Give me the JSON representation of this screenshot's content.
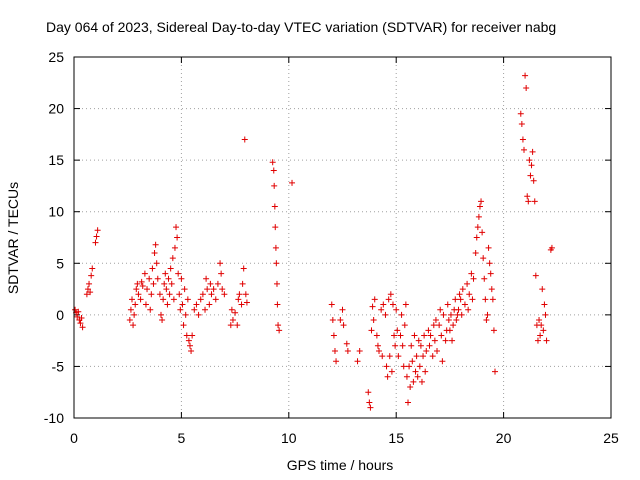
{
  "chart_data": {
    "type": "scatter",
    "title": "Day 064 of 2023, Sidereal Day-to-day VTEC variation (SDTVAR) for receiver nabg",
    "xlabel": "GPS time / hours",
    "ylabel": "SDTVAR / TECUs",
    "xlim": [
      0,
      25
    ],
    "ylim": [
      -10,
      25
    ],
    "xticks": [
      0,
      5,
      10,
      15,
      20,
      25
    ],
    "yticks": [
      -10,
      -5,
      0,
      5,
      10,
      15,
      20,
      25
    ],
    "xtick_labels": [
      "0",
      "5",
      "10",
      "15",
      "20",
      "25"
    ],
    "ytick_labels": [
      "-10",
      "-5",
      "0",
      "5",
      "10",
      "15",
      "20",
      "25"
    ],
    "grid": true,
    "marker": "+",
    "color": "#e00000",
    "series": [
      {
        "name": "SDTVAR",
        "points": [
          [
            0.05,
            0.5
          ],
          [
            0.1,
            0.2
          ],
          [
            0.15,
            -0.2
          ],
          [
            0.2,
            0.3
          ],
          [
            0.25,
            -0.5
          ],
          [
            0.3,
            -0.8
          ],
          [
            0.35,
            -0.3
          ],
          [
            0.4,
            -1.2
          ],
          [
            0.6,
            2.0
          ],
          [
            0.65,
            2.5
          ],
          [
            0.7,
            3.0
          ],
          [
            0.75,
            2.2
          ],
          [
            0.8,
            3.8
          ],
          [
            0.85,
            4.5
          ],
          [
            1.0,
            7.0
          ],
          [
            1.05,
            7.6
          ],
          [
            1.1,
            8.2
          ],
          [
            2.6,
            -0.5
          ],
          [
            2.65,
            0.5
          ],
          [
            2.7,
            1.5
          ],
          [
            2.75,
            -1.0
          ],
          [
            2.8,
            0.0
          ],
          [
            2.85,
            1.0
          ],
          [
            2.9,
            2.5
          ],
          [
            2.95,
            3.0
          ],
          [
            3.0,
            2.0
          ],
          [
            3.1,
            1.5
          ],
          [
            3.15,
            3.2
          ],
          [
            3.2,
            2.8
          ],
          [
            3.3,
            4.0
          ],
          [
            3.35,
            1.0
          ],
          [
            3.4,
            2.5
          ],
          [
            3.5,
            3.5
          ],
          [
            3.55,
            0.5
          ],
          [
            3.6,
            2.0
          ],
          [
            3.65,
            4.5
          ],
          [
            3.7,
            3.0
          ],
          [
            3.75,
            6.0
          ],
          [
            3.8,
            6.8
          ],
          [
            3.85,
            5.0
          ],
          [
            3.9,
            3.5
          ],
          [
            4.0,
            2.0
          ],
          [
            4.05,
            0.0
          ],
          [
            4.1,
            -0.5
          ],
          [
            4.15,
            1.5
          ],
          [
            4.2,
            3.0
          ],
          [
            4.25,
            4.0
          ],
          [
            4.3,
            2.5
          ],
          [
            4.35,
            1.0
          ],
          [
            4.4,
            3.5
          ],
          [
            4.45,
            2.0
          ],
          [
            4.5,
            4.5
          ],
          [
            4.55,
            3.0
          ],
          [
            4.6,
            5.5
          ],
          [
            4.65,
            1.5
          ],
          [
            4.7,
            6.5
          ],
          [
            4.75,
            8.5
          ],
          [
            4.8,
            7.5
          ],
          [
            4.85,
            4.0
          ],
          [
            4.9,
            2.0
          ],
          [
            4.95,
            0.5
          ],
          [
            5.0,
            3.5
          ],
          [
            5.05,
            1.0
          ],
          [
            5.1,
            -1.0
          ],
          [
            5.15,
            2.5
          ],
          [
            5.2,
            0.0
          ],
          [
            5.25,
            -2.0
          ],
          [
            5.3,
            1.5
          ],
          [
            5.35,
            -2.5
          ],
          [
            5.4,
            -3.0
          ],
          [
            5.45,
            -3.5
          ],
          [
            5.5,
            -2.0
          ],
          [
            5.6,
            0.5
          ],
          [
            5.7,
            1.0
          ],
          [
            5.8,
            0.0
          ],
          [
            5.9,
            1.5
          ],
          [
            6.0,
            2.0
          ],
          [
            6.1,
            0.5
          ],
          [
            6.15,
            3.5
          ],
          [
            6.2,
            2.5
          ],
          [
            6.3,
            1.0
          ],
          [
            6.35,
            3.0
          ],
          [
            6.4,
            2.0
          ],
          [
            6.5,
            2.5
          ],
          [
            6.6,
            1.5
          ],
          [
            6.7,
            3.0
          ],
          [
            6.8,
            5.0
          ],
          [
            6.85,
            4.0
          ],
          [
            6.9,
            2.5
          ],
          [
            7.0,
            2.0
          ],
          [
            7.3,
            -1.0
          ],
          [
            7.35,
            0.5
          ],
          [
            7.4,
            -0.5
          ],
          [
            7.5,
            0.2
          ],
          [
            7.6,
            -1.0
          ],
          [
            7.65,
            1.5
          ],
          [
            7.7,
            2.0
          ],
          [
            7.8,
            1.0
          ],
          [
            7.85,
            3.0
          ],
          [
            7.9,
            4.5
          ],
          [
            7.95,
            17.0
          ],
          [
            8.0,
            2.0
          ],
          [
            8.05,
            1.2
          ],
          [
            9.25,
            14.8
          ],
          [
            9.3,
            14.0
          ],
          [
            9.32,
            12.5
          ],
          [
            9.35,
            10.5
          ],
          [
            9.37,
            8.5
          ],
          [
            9.4,
            6.5
          ],
          [
            9.42,
            5.0
          ],
          [
            9.45,
            3.0
          ],
          [
            9.47,
            1.0
          ],
          [
            9.5,
            -1.0
          ],
          [
            9.55,
            -1.5
          ],
          [
            10.15,
            12.8
          ],
          [
            12.0,
            1.0
          ],
          [
            12.05,
            -0.5
          ],
          [
            12.1,
            -2.0
          ],
          [
            12.15,
            -3.5
          ],
          [
            12.2,
            -4.5
          ],
          [
            12.4,
            -0.5
          ],
          [
            12.5,
            0.5
          ],
          [
            12.55,
            -1.0
          ],
          [
            12.7,
            -2.8
          ],
          [
            12.75,
            -3.5
          ],
          [
            13.2,
            -4.5
          ],
          [
            13.3,
            -3.5
          ],
          [
            13.7,
            -7.5
          ],
          [
            13.75,
            -8.5
          ],
          [
            13.8,
            -9.0
          ],
          [
            13.85,
            -1.5
          ],
          [
            13.9,
            0.8
          ],
          [
            13.95,
            -0.5
          ],
          [
            14.0,
            1.5
          ],
          [
            14.1,
            -2.0
          ],
          [
            14.15,
            -3.0
          ],
          [
            14.2,
            -3.5
          ],
          [
            14.3,
            0.5
          ],
          [
            14.35,
            -4.0
          ],
          [
            14.4,
            1.0
          ],
          [
            14.5,
            0.0
          ],
          [
            14.55,
            -5.0
          ],
          [
            14.6,
            -6.0
          ],
          [
            14.65,
            1.5
          ],
          [
            14.7,
            -4.0
          ],
          [
            14.75,
            2.0
          ],
          [
            14.8,
            -5.5
          ],
          [
            14.85,
            1.0
          ],
          [
            14.9,
            -2.0
          ],
          [
            14.95,
            -3.0
          ],
          [
            15.0,
            0.5
          ],
          [
            15.05,
            -1.5
          ],
          [
            15.1,
            -4.0
          ],
          [
            15.2,
            -2.0
          ],
          [
            15.25,
            0.0
          ],
          [
            15.3,
            -3.0
          ],
          [
            15.35,
            -5.0
          ],
          [
            15.4,
            -1.0
          ],
          [
            15.45,
            1.0
          ],
          [
            15.5,
            -6.0
          ],
          [
            15.55,
            -8.5
          ],
          [
            15.6,
            -5.0
          ],
          [
            15.65,
            -7.0
          ],
          [
            15.7,
            -3.0
          ],
          [
            15.75,
            -4.5
          ],
          [
            15.8,
            -6.5
          ],
          [
            15.85,
            -2.0
          ],
          [
            15.9,
            -5.5
          ],
          [
            15.95,
            -4.0
          ],
          [
            16.0,
            -6.0
          ],
          [
            16.05,
            -2.5
          ],
          [
            16.1,
            -5.0
          ],
          [
            16.15,
            -3.0
          ],
          [
            16.2,
            -6.5
          ],
          [
            16.25,
            -4.0
          ],
          [
            16.3,
            -2.0
          ],
          [
            16.35,
            -5.5
          ],
          [
            16.4,
            -3.5
          ],
          [
            16.5,
            -1.5
          ],
          [
            16.55,
            -3.0
          ],
          [
            16.6,
            -2.0
          ],
          [
            16.7,
            -4.0
          ],
          [
            16.75,
            -1.0
          ],
          [
            16.8,
            -2.5
          ],
          [
            16.85,
            -0.5
          ],
          [
            16.9,
            -3.5
          ],
          [
            17.0,
            -1.0
          ],
          [
            17.05,
            0.5
          ],
          [
            17.1,
            -2.0
          ],
          [
            17.15,
            -4.5
          ],
          [
            17.2,
            0.0
          ],
          [
            17.3,
            -2.5
          ],
          [
            17.35,
            -1.5
          ],
          [
            17.4,
            1.0
          ],
          [
            17.45,
            -0.5
          ],
          [
            17.5,
            -1.5
          ],
          [
            17.55,
            0.0
          ],
          [
            17.6,
            -2.5
          ],
          [
            17.65,
            -1.0
          ],
          [
            17.7,
            0.5
          ],
          [
            17.75,
            1.5
          ],
          [
            17.8,
            -0.5
          ],
          [
            17.85,
            0.0
          ],
          [
            17.9,
            0.5
          ],
          [
            17.95,
            2.0
          ],
          [
            18.0,
            1.5
          ],
          [
            18.05,
            0.0
          ],
          [
            18.1,
            2.5
          ],
          [
            18.2,
            1.0
          ],
          [
            18.3,
            3.0
          ],
          [
            18.35,
            0.5
          ],
          [
            18.4,
            2.0
          ],
          [
            18.5,
            4.0
          ],
          [
            18.55,
            1.5
          ],
          [
            18.6,
            3.5
          ],
          [
            18.7,
            6.0
          ],
          [
            18.75,
            7.5
          ],
          [
            18.8,
            8.5
          ],
          [
            18.85,
            9.5
          ],
          [
            18.9,
            10.5
          ],
          [
            18.95,
            11.0
          ],
          [
            19.0,
            8.0
          ],
          [
            19.05,
            5.5
          ],
          [
            19.1,
            3.5
          ],
          [
            19.15,
            1.5
          ],
          [
            19.2,
            -0.5
          ],
          [
            19.25,
            0.0
          ],
          [
            19.3,
            6.5
          ],
          [
            19.35,
            5.0
          ],
          [
            19.4,
            4.0
          ],
          [
            19.45,
            2.5
          ],
          [
            19.5,
            1.5
          ],
          [
            19.55,
            -1.5
          ],
          [
            19.6,
            -5.5
          ],
          [
            20.8,
            19.5
          ],
          [
            20.85,
            18.5
          ],
          [
            20.9,
            17.0
          ],
          [
            20.95,
            16.0
          ],
          [
            21.0,
            23.2
          ],
          [
            21.05,
            22.0
          ],
          [
            21.1,
            11.5
          ],
          [
            21.15,
            11.0
          ],
          [
            21.2,
            15.0
          ],
          [
            21.25,
            13.5
          ],
          [
            21.3,
            14.5
          ],
          [
            21.35,
            15.8
          ],
          [
            21.4,
            13.0
          ],
          [
            21.45,
            11.0
          ],
          [
            21.5,
            3.8
          ],
          [
            21.55,
            -1.0
          ],
          [
            21.6,
            -2.5
          ],
          [
            21.65,
            -0.5
          ],
          [
            21.7,
            -2.0
          ],
          [
            21.75,
            -1.0
          ],
          [
            21.8,
            2.5
          ],
          [
            21.85,
            -1.5
          ],
          [
            21.9,
            1.0
          ],
          [
            21.95,
            0.0
          ],
          [
            22.0,
            -2.5
          ],
          [
            22.2,
            6.3
          ],
          [
            22.25,
            6.5
          ]
        ]
      }
    ]
  }
}
